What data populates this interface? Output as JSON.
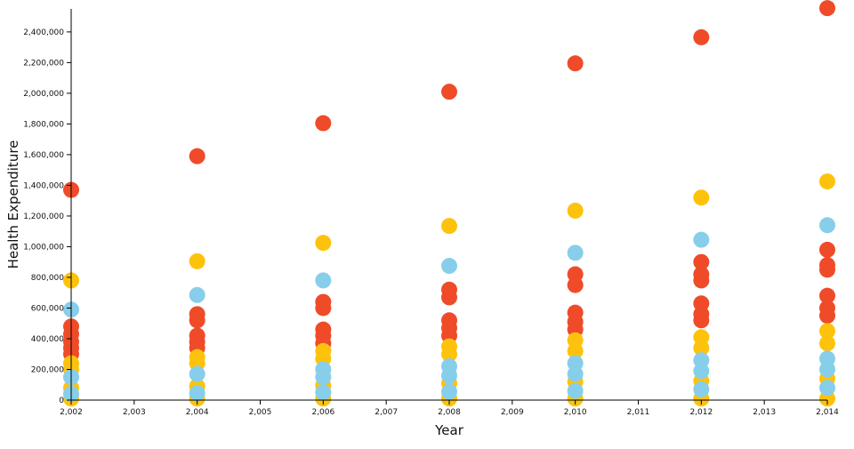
{
  "chart_data": {
    "type": "scatter",
    "xlabel": "Year",
    "ylabel": "Health Expenditure",
    "xlim": [
      2002,
      2014
    ],
    "ylim": [
      0,
      2550000
    ],
    "x_ticks": [
      2002,
      2003,
      2004,
      2005,
      2006,
      2007,
      2008,
      2009,
      2010,
      2011,
      2012,
      2013,
      2014
    ],
    "x_tick_labels": [
      "2,002",
      "2,003",
      "2,004",
      "2,005",
      "2,006",
      "2,007",
      "2,008",
      "2,009",
      "2,010",
      "2,011",
      "2,012",
      "2,013",
      "2,014"
    ],
    "y_ticks": [
      0,
      200000,
      400000,
      600000,
      800000,
      1000000,
      1200000,
      1400000,
      1600000,
      1800000,
      2000000,
      2200000,
      2400000
    ],
    "y_tick_labels": [
      "0",
      "200,000",
      "400,000",
      "600,000",
      "800,000",
      "1,000,000",
      "1,200,000",
      "1,400,000",
      "1,600,000",
      "1,800,000",
      "2,000,000",
      "2,200,000",
      "2,400,000"
    ],
    "grid": false,
    "colors": {
      "red": "#ef4b29",
      "yellow": "#fdc30c",
      "blue": "#87ceeb"
    },
    "series": [
      {
        "color_key": "red",
        "points": [
          [
            2002,
            1370000
          ],
          [
            2002,
            480000
          ],
          [
            2002,
            430000
          ],
          [
            2002,
            380000
          ],
          [
            2002,
            340000
          ],
          [
            2002,
            300000
          ],
          [
            2004,
            1590000
          ],
          [
            2004,
            560000
          ],
          [
            2004,
            520000
          ],
          [
            2004,
            420000
          ],
          [
            2004,
            380000
          ],
          [
            2004,
            340000
          ],
          [
            2006,
            1805000
          ],
          [
            2006,
            640000
          ],
          [
            2006,
            600000
          ],
          [
            2006,
            460000
          ],
          [
            2006,
            420000
          ],
          [
            2006,
            370000
          ],
          [
            2008,
            2010000
          ],
          [
            2008,
            720000
          ],
          [
            2008,
            670000
          ],
          [
            2008,
            520000
          ],
          [
            2008,
            470000
          ],
          [
            2008,
            420000
          ],
          [
            2010,
            2195000
          ],
          [
            2010,
            820000
          ],
          [
            2010,
            750000
          ],
          [
            2010,
            570000
          ],
          [
            2010,
            510000
          ],
          [
            2010,
            460000
          ],
          [
            2012,
            2365000
          ],
          [
            2012,
            900000
          ],
          [
            2012,
            820000
          ],
          [
            2012,
            780000
          ],
          [
            2012,
            630000
          ],
          [
            2012,
            560000
          ],
          [
            2012,
            520000
          ],
          [
            2014,
            2555000
          ],
          [
            2014,
            980000
          ],
          [
            2014,
            880000
          ],
          [
            2014,
            850000
          ],
          [
            2014,
            680000
          ],
          [
            2014,
            600000
          ],
          [
            2014,
            550000
          ]
        ]
      },
      {
        "color_key": "yellow",
        "points": [
          [
            2002,
            780000
          ],
          [
            2002,
            240000
          ],
          [
            2002,
            200000
          ],
          [
            2002,
            80000
          ],
          [
            2002,
            10000
          ],
          [
            2004,
            905000
          ],
          [
            2004,
            280000
          ],
          [
            2004,
            240000
          ],
          [
            2004,
            90000
          ],
          [
            2004,
            10000
          ],
          [
            2006,
            1025000
          ],
          [
            2006,
            320000
          ],
          [
            2006,
            270000
          ],
          [
            2006,
            95000
          ],
          [
            2006,
            10000
          ],
          [
            2008,
            1135000
          ],
          [
            2008,
            350000
          ],
          [
            2008,
            300000
          ],
          [
            2008,
            110000
          ],
          [
            2008,
            10000
          ],
          [
            2010,
            1235000
          ],
          [
            2010,
            390000
          ],
          [
            2010,
            320000
          ],
          [
            2010,
            120000
          ],
          [
            2010,
            10000
          ],
          [
            2012,
            1320000
          ],
          [
            2012,
            410000
          ],
          [
            2012,
            340000
          ],
          [
            2012,
            125000
          ],
          [
            2012,
            10000
          ],
          [
            2014,
            1425000
          ],
          [
            2014,
            450000
          ],
          [
            2014,
            370000
          ],
          [
            2014,
            140000
          ],
          [
            2014,
            10000
          ]
        ]
      },
      {
        "color_key": "blue",
        "points": [
          [
            2002,
            590000
          ],
          [
            2002,
            150000
          ],
          [
            2002,
            40000
          ],
          [
            2004,
            685000
          ],
          [
            2004,
            170000
          ],
          [
            2004,
            45000
          ],
          [
            2006,
            780000
          ],
          [
            2006,
            200000
          ],
          [
            2006,
            150000
          ],
          [
            2006,
            50000
          ],
          [
            2008,
            875000
          ],
          [
            2008,
            220000
          ],
          [
            2008,
            160000
          ],
          [
            2008,
            55000
          ],
          [
            2010,
            960000
          ],
          [
            2010,
            240000
          ],
          [
            2010,
            170000
          ],
          [
            2010,
            60000
          ],
          [
            2012,
            1045000
          ],
          [
            2012,
            260000
          ],
          [
            2012,
            190000
          ],
          [
            2012,
            70000
          ],
          [
            2014,
            1140000
          ],
          [
            2014,
            270000
          ],
          [
            2014,
            200000
          ],
          [
            2014,
            80000
          ]
        ]
      }
    ]
  }
}
